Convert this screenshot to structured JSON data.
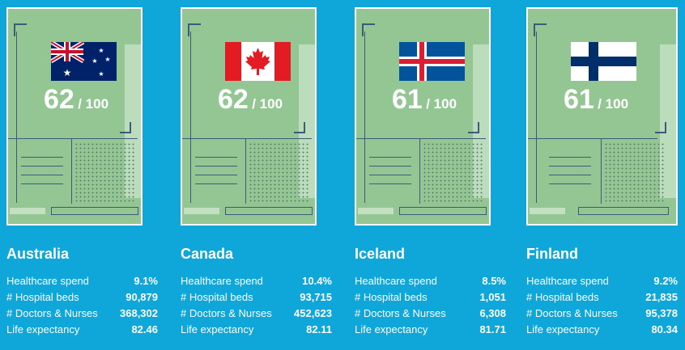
{
  "countries": [
    {
      "name": "Australia",
      "flag_icon": "australia-flag-icon",
      "score": "62",
      "score_suffix": "/ 100",
      "stats": [
        {
          "label": "Healthcare spend",
          "value": "9.1%"
        },
        {
          "label": "# Hospital beds",
          "value": "90,879"
        },
        {
          "label": "# Doctors & Nurses",
          "value": "368,302"
        },
        {
          "label": "Life expectancy",
          "value": "82.46"
        }
      ]
    },
    {
      "name": "Canada",
      "flag_icon": "canada-flag-icon",
      "score": "62",
      "score_suffix": "/ 100",
      "stats": [
        {
          "label": "Healthcare spend",
          "value": "10.4%"
        },
        {
          "label": "# Hospital beds",
          "value": "93,715"
        },
        {
          "label": "# Doctors & Nurses",
          "value": "452,623"
        },
        {
          "label": "Life expectancy",
          "value": "82.11"
        }
      ]
    },
    {
      "name": "Iceland",
      "flag_icon": "iceland-flag-icon",
      "score": "61",
      "score_suffix": "/ 100",
      "stats": [
        {
          "label": "Healthcare spend",
          "value": "8.5%"
        },
        {
          "label": "# Hospital beds",
          "value": "1,051"
        },
        {
          "label": "# Doctors & Nurses",
          "value": "6,308"
        },
        {
          "label": "Life expectancy",
          "value": "81.71"
        }
      ]
    },
    {
      "name": "Finland",
      "flag_icon": "finland-flag-icon",
      "score": "61",
      "score_suffix": "/ 100",
      "stats": [
        {
          "label": "Healthcare spend",
          "value": "9.2%"
        },
        {
          "label": "# Hospital beds",
          "value": "21,835"
        },
        {
          "label": "# Doctors & Nurses",
          "value": "95,378"
        },
        {
          "label": "Life expectancy",
          "value": "80.34"
        }
      ]
    }
  ],
  "colors": {
    "background": "#0fa6d9",
    "card": "#93c693",
    "card_line": "#3d5a7a",
    "text": "#ffffff"
  }
}
